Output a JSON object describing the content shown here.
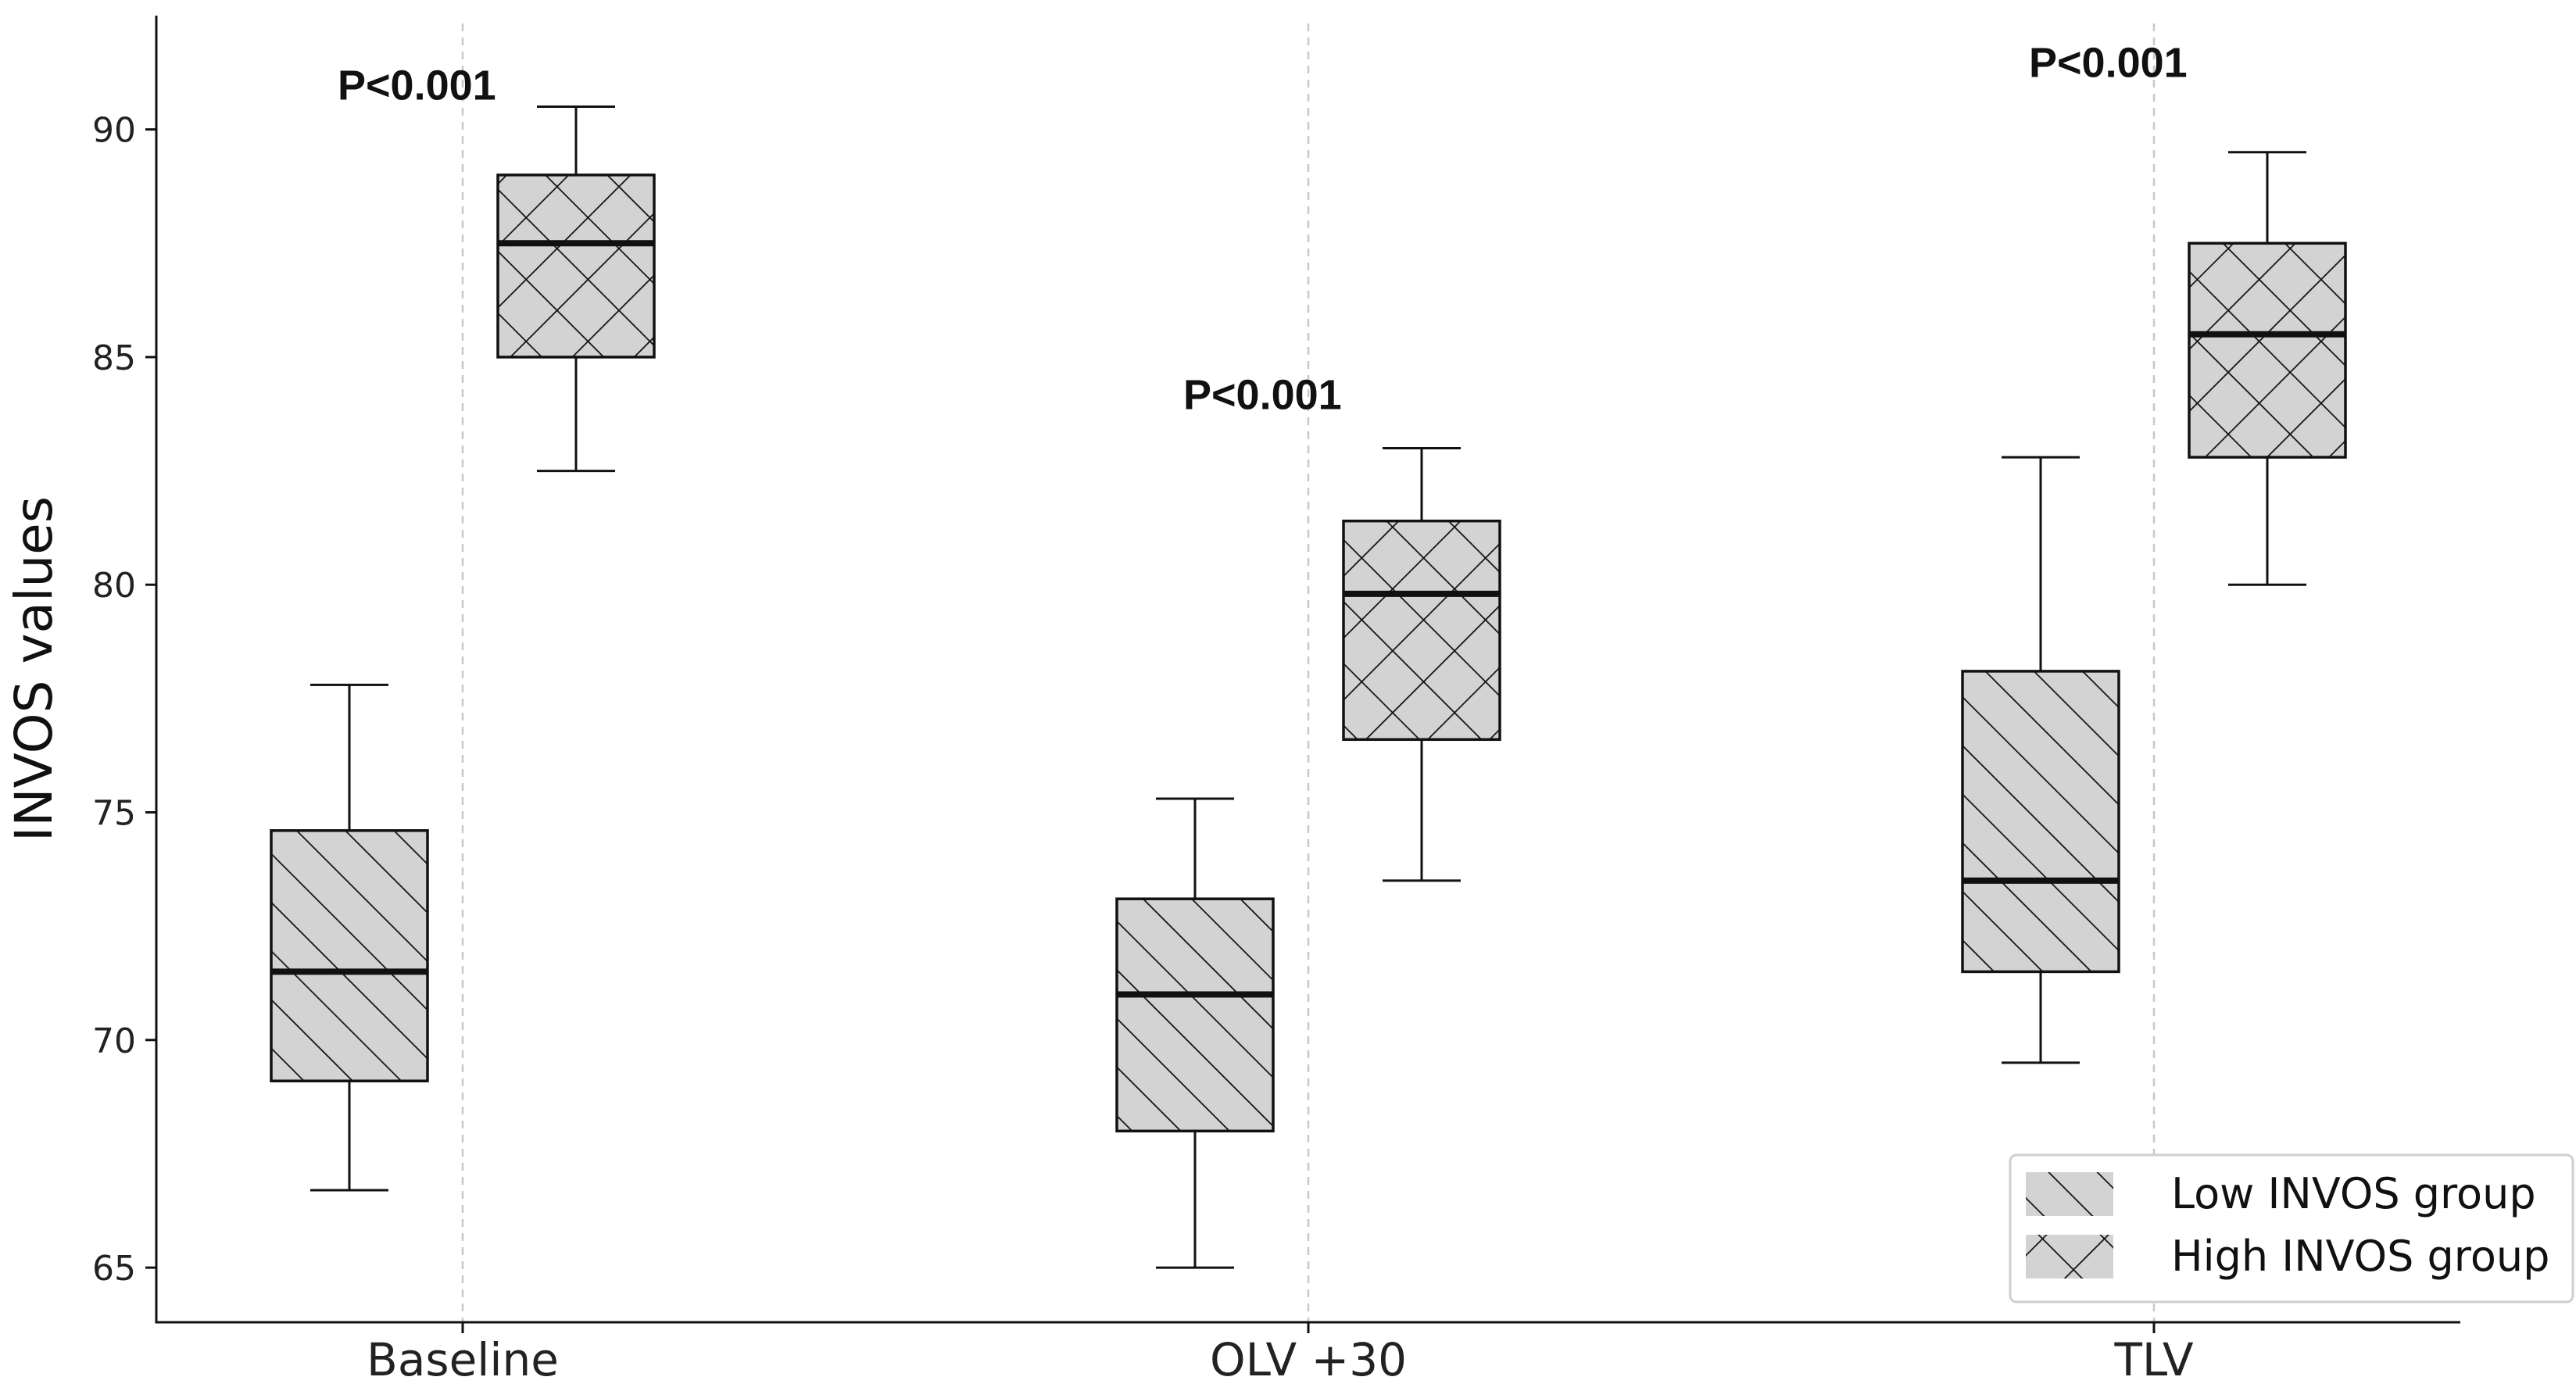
{
  "chart_data": {
    "type": "box",
    "title": "",
    "xlabel": "",
    "ylabel": "INVOS values",
    "ylim": [
      63.8,
      92.5
    ],
    "yticks": [
      65,
      70,
      75,
      80,
      85,
      90
    ],
    "categories": [
      "Baseline",
      "OLV +30",
      "TLV"
    ],
    "grid": "vertical dashed lines at each category",
    "legend_position": "bottom-right",
    "series": [
      {
        "name": "Low INVOS group",
        "hatch": "diagonal",
        "fill": "#d3d3d3",
        "boxes": [
          {
            "whisker_low": 66.7,
            "q1": 69.1,
            "median": 71.5,
            "q3": 74.6,
            "whisker_high": 77.8
          },
          {
            "whisker_low": 65.0,
            "q1": 68.0,
            "median": 71.0,
            "q3": 73.1,
            "whisker_high": 75.3
          },
          {
            "whisker_low": 69.5,
            "q1": 71.5,
            "median": 73.5,
            "q3": 78.1,
            "whisker_high": 82.8
          }
        ]
      },
      {
        "name": "High INVOS group",
        "hatch": "cross",
        "fill": "#d3d3d3",
        "boxes": [
          {
            "whisker_low": 82.5,
            "q1": 85.0,
            "median": 87.5,
            "q3": 89.0,
            "whisker_high": 90.5
          },
          {
            "whisker_low": 73.5,
            "q1": 76.6,
            "median": 79.8,
            "q3": 81.4,
            "whisker_high": 83.0
          },
          {
            "whisker_low": 80.0,
            "q1": 82.8,
            "median": 85.5,
            "q3": 87.5,
            "whisker_high": 89.5
          }
        ]
      }
    ],
    "annotations": [
      {
        "text": "P<0.001",
        "category": "Baseline",
        "y": 91.0
      },
      {
        "text": "P<0.001",
        "category": "OLV +30",
        "y": 84.2
      },
      {
        "text": "P<0.001",
        "category": "TLV",
        "y": 91.5
      }
    ]
  }
}
